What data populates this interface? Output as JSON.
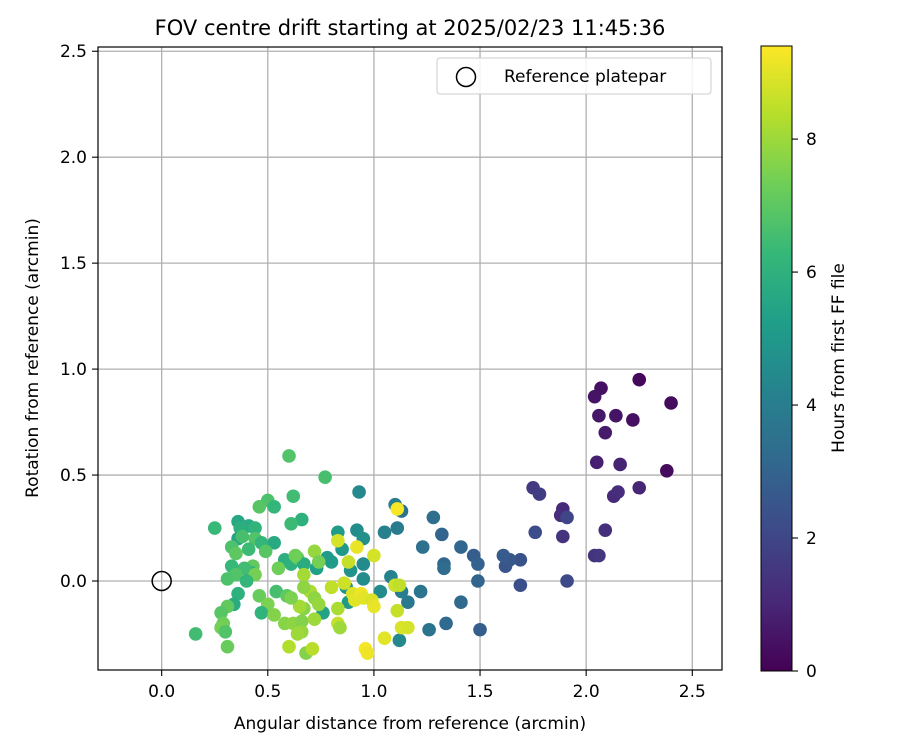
{
  "chart_data": {
    "type": "scatter",
    "title": "FOV centre drift starting at 2025/02/23 11:45:36",
    "xlabel": "Angular distance from reference (arcmin)",
    "ylabel": "Rotation from reference (arcmin)",
    "xlim": [
      -0.3,
      2.64
    ],
    "ylim": [
      -0.42,
      2.52
    ],
    "xticks": [
      "0.0",
      "0.5",
      "1.0",
      "1.5",
      "2.0",
      "2.5"
    ],
    "yticks": [
      "0.0",
      "0.5",
      "1.0",
      "1.5",
      "2.0",
      "2.5"
    ],
    "grid": true,
    "legend": {
      "placement": "top-right",
      "label": "Reference platepar"
    },
    "reference_point": {
      "x": 0.0,
      "y": 0.0
    },
    "colorbar": {
      "label": "Hours from first FF file",
      "range": [
        0,
        9.4
      ],
      "ticks": [
        "0",
        "2",
        "4",
        "6",
        "8"
      ],
      "colormap": [
        "#440154",
        "#482878",
        "#3e4989",
        "#31688e",
        "#26828e",
        "#1f9e89",
        "#35b779",
        "#6ece58",
        "#b5de2b",
        "#fde725"
      ]
    },
    "points": [
      {
        "x": 2.25,
        "y": 0.95,
        "h": 0.2
      },
      {
        "x": 2.4,
        "y": 0.84,
        "h": 0.3
      },
      {
        "x": 2.07,
        "y": 0.91,
        "h": 0.4
      },
      {
        "x": 2.04,
        "y": 0.87,
        "h": 0.5
      },
      {
        "x": 2.06,
        "y": 0.78,
        "h": 0.6
      },
      {
        "x": 2.14,
        "y": 0.78,
        "h": 0.5
      },
      {
        "x": 2.22,
        "y": 0.76,
        "h": 0.4
      },
      {
        "x": 2.09,
        "y": 0.7,
        "h": 0.7
      },
      {
        "x": 2.05,
        "y": 0.56,
        "h": 0.8
      },
      {
        "x": 2.16,
        "y": 0.55,
        "h": 0.9
      },
      {
        "x": 2.38,
        "y": 0.52,
        "h": 0.3
      },
      {
        "x": 2.25,
        "y": 0.44,
        "h": 1.0
      },
      {
        "x": 2.13,
        "y": 0.4,
        "h": 1.1
      },
      {
        "x": 2.15,
        "y": 0.42,
        "h": 1.2
      },
      {
        "x": 2.09,
        "y": 0.24,
        "h": 1.3
      },
      {
        "x": 2.04,
        "y": 0.12,
        "h": 1.4
      },
      {
        "x": 2.06,
        "y": 0.12,
        "h": 1.5
      },
      {
        "x": 1.75,
        "y": 0.44,
        "h": 1.6
      },
      {
        "x": 1.78,
        "y": 0.41,
        "h": 1.7
      },
      {
        "x": 1.89,
        "y": 0.34,
        "h": 1.1
      },
      {
        "x": 1.88,
        "y": 0.31,
        "h": 1.2
      },
      {
        "x": 1.91,
        "y": 0.3,
        "h": 2.0
      },
      {
        "x": 1.89,
        "y": 0.21,
        "h": 1.4
      },
      {
        "x": 1.76,
        "y": 0.23,
        "h": 2.2
      },
      {
        "x": 1.91,
        "y": 0.0,
        "h": 2.1
      },
      {
        "x": 1.69,
        "y": 0.1,
        "h": 2.4
      },
      {
        "x": 1.69,
        "y": -0.02,
        "h": 2.3
      },
      {
        "x": 1.62,
        "y": 0.07,
        "h": 2.5
      },
      {
        "x": 1.64,
        "y": 0.1,
        "h": 2.6
      },
      {
        "x": 1.61,
        "y": 0.12,
        "h": 2.7
      },
      {
        "x": 1.47,
        "y": 0.12,
        "h": 2.8
      },
      {
        "x": 1.49,
        "y": 0.08,
        "h": 2.9
      },
      {
        "x": 1.49,
        "y": 0.0,
        "h": 3.0
      },
      {
        "x": 1.5,
        "y": -0.23,
        "h": 2.8
      },
      {
        "x": 1.41,
        "y": 0.16,
        "h": 3.1
      },
      {
        "x": 1.41,
        "y": -0.1,
        "h": 3.2
      },
      {
        "x": 1.32,
        "y": 0.22,
        "h": 3.0
      },
      {
        "x": 1.33,
        "y": 0.08,
        "h": 3.1
      },
      {
        "x": 1.33,
        "y": 0.06,
        "h": 3.3
      },
      {
        "x": 1.34,
        "y": -0.2,
        "h": 3.2
      },
      {
        "x": 1.28,
        "y": 0.3,
        "h": 3.4
      },
      {
        "x": 1.23,
        "y": 0.16,
        "h": 3.5
      },
      {
        "x": 1.26,
        "y": -0.23,
        "h": 3.6
      },
      {
        "x": 1.22,
        "y": -0.05,
        "h": 3.7
      },
      {
        "x": 1.16,
        "y": -0.1,
        "h": 3.8
      },
      {
        "x": 1.13,
        "y": 0.33,
        "h": 3.6
      },
      {
        "x": 1.11,
        "y": 0.25,
        "h": 3.9
      },
      {
        "x": 1.1,
        "y": 0.36,
        "h": 4.0
      },
      {
        "x": 1.05,
        "y": 0.23,
        "h": 4.1
      },
      {
        "x": 1.08,
        "y": 0.02,
        "h": 4.2
      },
      {
        "x": 1.1,
        "y": -0.02,
        "h": 4.3
      },
      {
        "x": 1.13,
        "y": -0.05,
        "h": 4.0
      },
      {
        "x": 1.12,
        "y": -0.28,
        "h": 4.4
      },
      {
        "x": 1.03,
        "y": -0.05,
        "h": 4.5
      },
      {
        "x": 0.93,
        "y": 0.42,
        "h": 4.4
      },
      {
        "x": 0.92,
        "y": 0.24,
        "h": 4.6
      },
      {
        "x": 0.95,
        "y": 0.2,
        "h": 4.7
      },
      {
        "x": 0.95,
        "y": 0.08,
        "h": 4.5
      },
      {
        "x": 0.95,
        "y": 0.01,
        "h": 4.6
      },
      {
        "x": 0.89,
        "y": 0.05,
        "h": 4.8
      },
      {
        "x": 0.87,
        "y": -0.03,
        "h": 4.9
      },
      {
        "x": 0.88,
        "y": -0.1,
        "h": 5.0
      },
      {
        "x": 0.83,
        "y": 0.23,
        "h": 5.1
      },
      {
        "x": 0.85,
        "y": 0.15,
        "h": 5.0
      },
      {
        "x": 0.8,
        "y": 0.09,
        "h": 5.2
      },
      {
        "x": 0.78,
        "y": 0.11,
        "h": 5.1
      },
      {
        "x": 0.73,
        "y": 0.06,
        "h": 5.3
      },
      {
        "x": 0.76,
        "y": -0.15,
        "h": 5.4
      },
      {
        "x": 0.77,
        "y": 0.49,
        "h": 6.6
      },
      {
        "x": 0.6,
        "y": 0.59,
        "h": 6.8
      },
      {
        "x": 0.62,
        "y": 0.4,
        "h": 6.5
      },
      {
        "x": 0.66,
        "y": 0.29,
        "h": 6.0
      },
      {
        "x": 0.61,
        "y": 0.27,
        "h": 6.4
      },
      {
        "x": 0.5,
        "y": 0.38,
        "h": 6.7
      },
      {
        "x": 0.53,
        "y": 0.35,
        "h": 6.2
      },
      {
        "x": 0.46,
        "y": 0.35,
        "h": 6.9
      },
      {
        "x": 0.41,
        "y": 0.26,
        "h": 5.8
      },
      {
        "x": 0.44,
        "y": 0.25,
        "h": 6.1
      },
      {
        "x": 0.36,
        "y": 0.28,
        "h": 5.6
      },
      {
        "x": 0.37,
        "y": 0.25,
        "h": 5.9
      },
      {
        "x": 0.25,
        "y": 0.25,
        "h": 6.3
      },
      {
        "x": 0.36,
        "y": 0.2,
        "h": 5.5
      },
      {
        "x": 0.38,
        "y": 0.21,
        "h": 6.6
      },
      {
        "x": 0.44,
        "y": 0.2,
        "h": 6.8
      },
      {
        "x": 0.47,
        "y": 0.18,
        "h": 6.2
      },
      {
        "x": 0.53,
        "y": 0.18,
        "h": 5.7
      },
      {
        "x": 0.49,
        "y": 0.14,
        "h": 6.9
      },
      {
        "x": 0.41,
        "y": 0.15,
        "h": 6.4
      },
      {
        "x": 0.33,
        "y": 0.16,
        "h": 6.7
      },
      {
        "x": 0.35,
        "y": 0.13,
        "h": 7.0
      },
      {
        "x": 0.58,
        "y": 0.1,
        "h": 5.9
      },
      {
        "x": 0.61,
        "y": 0.08,
        "h": 6.0
      },
      {
        "x": 0.64,
        "y": 0.11,
        "h": 7.2
      },
      {
        "x": 0.67,
        "y": 0.08,
        "h": 5.8
      },
      {
        "x": 0.55,
        "y": 0.06,
        "h": 7.3
      },
      {
        "x": 0.43,
        "y": 0.07,
        "h": 7.1
      },
      {
        "x": 0.42,
        "y": 0.04,
        "h": 6.1
      },
      {
        "x": 0.39,
        "y": 0.06,
        "h": 6.5
      },
      {
        "x": 0.33,
        "y": 0.07,
        "h": 6.3
      },
      {
        "x": 0.35,
        "y": 0.03,
        "h": 6.8
      },
      {
        "x": 0.44,
        "y": 0.03,
        "h": 7.4
      },
      {
        "x": 0.31,
        "y": 0.01,
        "h": 6.7
      },
      {
        "x": 0.4,
        "y": 0.0,
        "h": 6.2
      },
      {
        "x": 0.36,
        "y": -0.06,
        "h": 6.0
      },
      {
        "x": 0.46,
        "y": -0.07,
        "h": 7.2
      },
      {
        "x": 0.54,
        "y": -0.05,
        "h": 6.6
      },
      {
        "x": 0.59,
        "y": -0.07,
        "h": 7.0
      },
      {
        "x": 0.5,
        "y": -0.11,
        "h": 7.5
      },
      {
        "x": 0.47,
        "y": -0.15,
        "h": 6.1
      },
      {
        "x": 0.53,
        "y": -0.16,
        "h": 7.6
      },
      {
        "x": 0.34,
        "y": -0.11,
        "h": 5.8
      },
      {
        "x": 0.31,
        "y": -0.12,
        "h": 7.1
      },
      {
        "x": 0.28,
        "y": -0.15,
        "h": 6.9
      },
      {
        "x": 0.29,
        "y": -0.2,
        "h": 7.3
      },
      {
        "x": 0.28,
        "y": -0.22,
        "h": 7.4
      },
      {
        "x": 0.3,
        "y": -0.24,
        "h": 6.8
      },
      {
        "x": 0.16,
        "y": -0.25,
        "h": 6.5
      },
      {
        "x": 0.31,
        "y": -0.31,
        "h": 7.2
      },
      {
        "x": 0.58,
        "y": -0.2,
        "h": 7.7
      },
      {
        "x": 0.62,
        "y": -0.2,
        "h": 7.8
      },
      {
        "x": 0.66,
        "y": -0.19,
        "h": 7.6
      },
      {
        "x": 0.66,
        "y": -0.24,
        "h": 7.9
      },
      {
        "x": 0.64,
        "y": -0.25,
        "h": 8.0
      },
      {
        "x": 0.67,
        "y": -0.13,
        "h": 7.7
      },
      {
        "x": 0.65,
        "y": -0.12,
        "h": 8.1
      },
      {
        "x": 0.61,
        "y": -0.08,
        "h": 7.5
      },
      {
        "x": 0.7,
        "y": -0.05,
        "h": 8.2
      },
      {
        "x": 0.72,
        "y": -0.08,
        "h": 7.8
      },
      {
        "x": 0.74,
        "y": -0.11,
        "h": 7.9
      },
      {
        "x": 0.72,
        "y": -0.18,
        "h": 8.0
      },
      {
        "x": 0.6,
        "y": -0.31,
        "h": 8.3
      },
      {
        "x": 0.68,
        "y": -0.34,
        "h": 7.6
      },
      {
        "x": 0.71,
        "y": -0.32,
        "h": 8.4
      },
      {
        "x": 0.63,
        "y": 0.12,
        "h": 7.3
      },
      {
        "x": 0.67,
        "y": 0.03,
        "h": 8.1
      },
      {
        "x": 0.67,
        "y": -0.03,
        "h": 7.8
      },
      {
        "x": 0.72,
        "y": 0.14,
        "h": 7.9
      },
      {
        "x": 0.74,
        "y": 0.09,
        "h": 7.4
      },
      {
        "x": 0.8,
        "y": -0.03,
        "h": 8.5
      },
      {
        "x": 0.83,
        "y": -0.13,
        "h": 8.2
      },
      {
        "x": 0.83,
        "y": -0.2,
        "h": 8.6
      },
      {
        "x": 0.84,
        "y": -0.22,
        "h": 8.0
      },
      {
        "x": 0.86,
        "y": -0.01,
        "h": 8.7
      },
      {
        "x": 0.88,
        "y": 0.09,
        "h": 8.6
      },
      {
        "x": 0.83,
        "y": 0.19,
        "h": 8.8
      },
      {
        "x": 0.9,
        "y": -0.06,
        "h": 8.9
      },
      {
        "x": 0.91,
        "y": -0.09,
        "h": 9.0
      },
      {
        "x": 0.92,
        "y": 0.16,
        "h": 9.1
      },
      {
        "x": 0.94,
        "y": -0.06,
        "h": 9.2
      },
      {
        "x": 0.95,
        "y": -0.08,
        "h": 9.0
      },
      {
        "x": 0.96,
        "y": -0.32,
        "h": 9.3
      },
      {
        "x": 0.97,
        "y": -0.34,
        "h": 9.2
      },
      {
        "x": 0.99,
        "y": -0.09,
        "h": 8.9
      },
      {
        "x": 1.0,
        "y": 0.12,
        "h": 8.8
      },
      {
        "x": 1.0,
        "y": -0.12,
        "h": 9.1
      },
      {
        "x": 1.05,
        "y": -0.27,
        "h": 9.0
      },
      {
        "x": 1.1,
        "y": -0.02,
        "h": 8.7
      },
      {
        "x": 1.11,
        "y": -0.14,
        "h": 8.6
      },
      {
        "x": 1.12,
        "y": -0.02,
        "h": 8.5
      },
      {
        "x": 1.13,
        "y": -0.22,
        "h": 8.9
      },
      {
        "x": 1.16,
        "y": -0.22,
        "h": 8.8
      },
      {
        "x": 1.11,
        "y": 0.34,
        "h": 9.3
      }
    ]
  }
}
